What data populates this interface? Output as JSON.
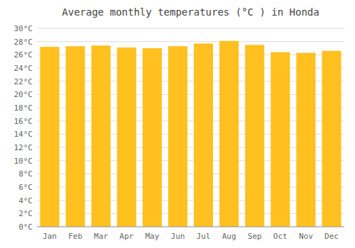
{
  "chart_data": {
    "type": "bar",
    "title": "Average monthly temperatures (°C ) in Honda",
    "categories": [
      "Jan",
      "Feb",
      "Mar",
      "Apr",
      "May",
      "Jun",
      "Jul",
      "Aug",
      "Sep",
      "Oct",
      "Nov",
      "Dec"
    ],
    "values": [
      27.2,
      27.3,
      27.4,
      27.1,
      27.0,
      27.3,
      27.7,
      28.1,
      27.5,
      26.4,
      26.3,
      26.6
    ],
    "color": "#FFC020",
    "ylim": [
      0,
      30
    ],
    "yticks": [
      {
        "value": 0,
        "label": "0°C"
      },
      {
        "value": 2,
        "label": "2°C"
      },
      {
        "value": 4,
        "label": "4°C"
      },
      {
        "value": 6,
        "label": "6°C"
      },
      {
        "value": 8,
        "label": "8°C"
      },
      {
        "value": 10,
        "label": "10°C"
      },
      {
        "value": 12,
        "label": "12°C"
      },
      {
        "value": 14,
        "label": "14°C"
      },
      {
        "value": 16,
        "label": "16°C"
      },
      {
        "value": 18,
        "label": "18°C"
      },
      {
        "value": 20,
        "label": "20°C"
      },
      {
        "value": 22,
        "label": "22°C"
      },
      {
        "value": 24,
        "label": "24°C"
      },
      {
        "value": 26,
        "label": "26°C"
      },
      {
        "value": 28,
        "label": "28°C"
      },
      {
        "value": 30,
        "label": "30°C"
      }
    ],
    "grid": true
  }
}
